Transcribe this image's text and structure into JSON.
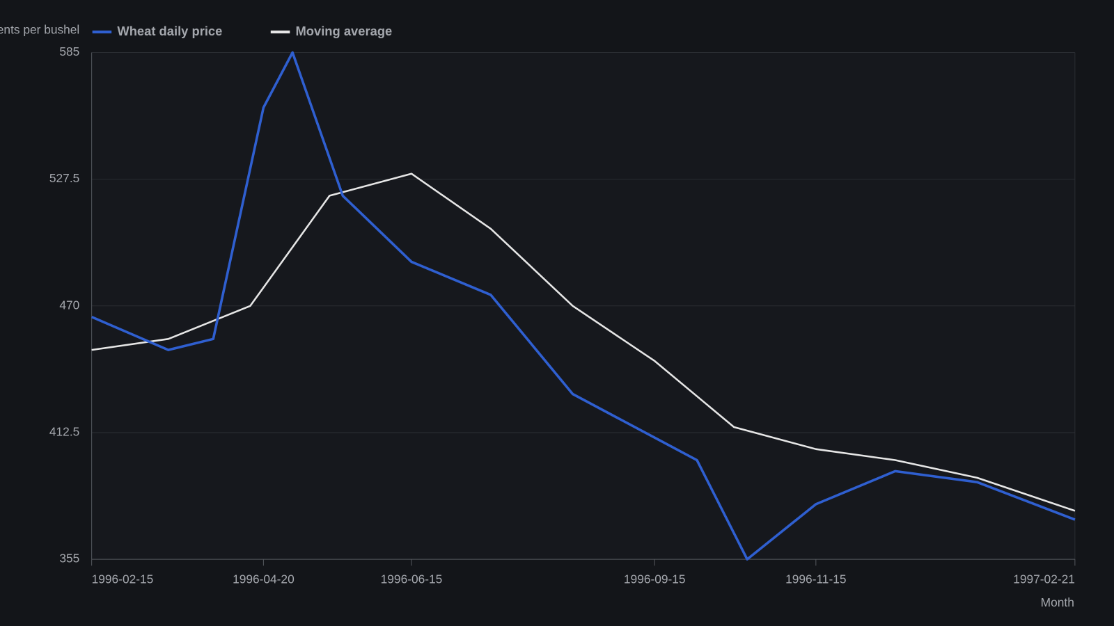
{
  "chart_data": {
    "type": "line",
    "y_label": "Cents per bushel",
    "x_label": "Month",
    "series": [
      {
        "name": "Wheat daily price",
        "color": "#2f5fd0",
        "x": [
          "1996-02-15",
          "1996-03-15",
          "1996-04-01",
          "1996-04-20",
          "1996-05-01",
          "1996-05-20",
          "1996-06-15",
          "1996-07-15",
          "1996-08-15",
          "1996-10-01",
          "1996-10-20",
          "1996-11-15",
          "1996-12-15",
          "1997-01-15",
          "1997-02-21"
        ],
        "values": [
          465,
          450,
          455,
          560,
          585,
          520,
          490,
          475,
          430,
          400,
          355,
          380,
          395,
          390,
          373
        ]
      },
      {
        "name": "Moving average",
        "color": "#e6e6e6",
        "x": [
          "1996-02-15",
          "1996-03-15",
          "1996-04-15",
          "1996-05-15",
          "1996-06-15",
          "1996-07-15",
          "1996-08-15",
          "1996-09-15",
          "1996-10-15",
          "1996-11-15",
          "1996-12-15",
          "1997-01-15",
          "1997-02-21"
        ],
        "values": [
          450,
          455,
          470,
          520,
          530,
          505,
          470,
          445,
          415,
          405,
          400,
          392,
          377
        ]
      }
    ],
    "xlim": [
      "1996-02-15",
      "1997-02-21"
    ],
    "xticks": [
      "1996-02-15",
      "1996-04-20",
      "1996-06-15",
      "1996-09-15",
      "1996-11-15",
      "1997-02-21"
    ],
    "ylim": [
      355,
      585
    ],
    "yticks": [
      355,
      412.5,
      470,
      527.5,
      585
    ],
    "grid": true
  }
}
